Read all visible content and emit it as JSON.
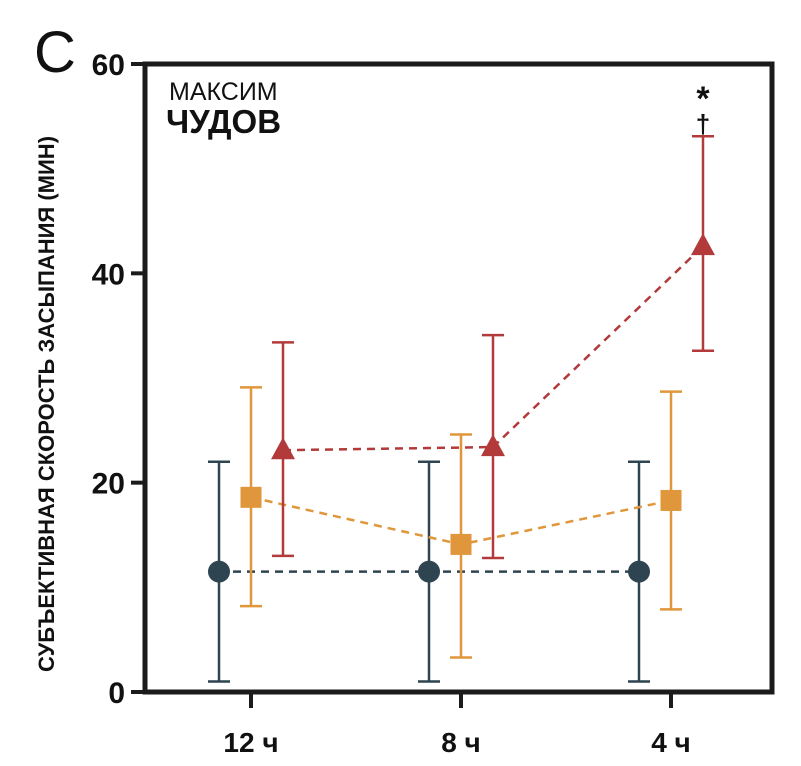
{
  "panel_label": "C",
  "watermark": {
    "line1": "МАКСИМ",
    "line2": "ЧУДОВ"
  },
  "chart_data": {
    "type": "line",
    "ylabel": "СУБЪЕКТИВНАЯ СКОРОСТЬ ЗАСЫПАНИЯ (МИН)",
    "xlabel": "",
    "categories": [
      "12 ч",
      "8 ч",
      "4 ч"
    ],
    "ylim": [
      0,
      60
    ],
    "yticks": [
      "0",
      "20",
      "40",
      "60"
    ],
    "grid": false,
    "series": [
      {
        "marker": "circle",
        "color": "#2e4451",
        "values": [
          11.5,
          11.5,
          11.5
        ],
        "err_low": [
          1,
          1,
          1
        ],
        "err_high": [
          22,
          22,
          22
        ]
      },
      {
        "marker": "square",
        "color": "#e0963a",
        "values": [
          18.6,
          14.1,
          18.3
        ],
        "err_low": [
          8.2,
          3.3,
          7.9
        ],
        "err_high": [
          29.1,
          24.6,
          28.7
        ]
      },
      {
        "marker": "triangle",
        "color": "#b23a3a",
        "values": [
          23.1,
          23.4,
          42.6
        ],
        "err_low": [
          13,
          12.8,
          32.6
        ],
        "err_high": [
          33.4,
          34.1,
          53.1
        ]
      }
    ],
    "annotations": [
      {
        "text": "*",
        "category": "4 ч"
      },
      {
        "text": "†",
        "category": "4 ч"
      }
    ]
  }
}
